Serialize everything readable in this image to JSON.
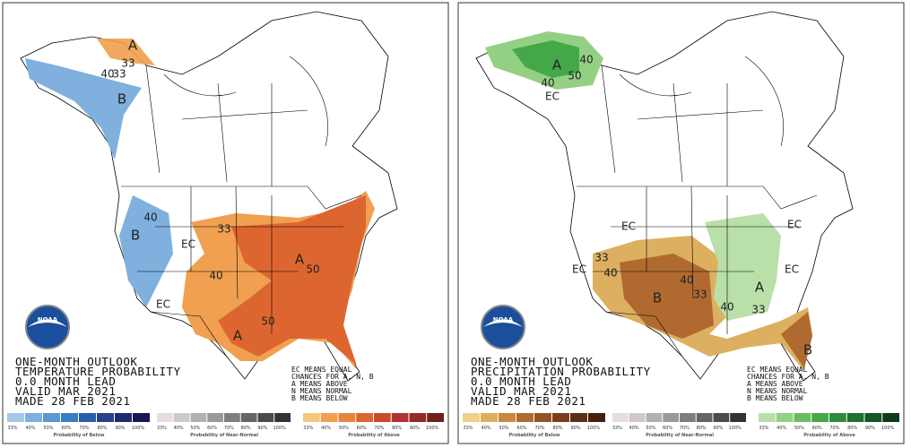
{
  "logo": "NOAA",
  "legend_ticks": [
    "33%",
    "40%",
    "50%",
    "60%",
    "70%",
    "80%",
    "90%",
    "100%"
  ],
  "panels": [
    {
      "title_lines": [
        "ONE-MONTH OUTLOOK",
        "TEMPERATURE PROBABILITY",
        "0.0 MONTH LEAD",
        "VALID MAR 2021",
        "MADE 28 FEB 2021"
      ],
      "notes": [
        "EC MEANS EQUAL",
        "CHANCES FOR A, N, B",
        "A MEANS ABOVE",
        "N MEANS NORMAL",
        "B MEANS BELOW"
      ],
      "legend": [
        {
          "caption": "Probability of Below"
        },
        {
          "caption": "Probability of Near-Normal"
        },
        {
          "caption": "Probability of Above"
        }
      ],
      "map_labels": [
        "A",
        "33",
        "40",
        "33",
        "B",
        "40",
        "B",
        "33",
        "EC",
        "40",
        "EC",
        "A",
        "50",
        "50",
        "A"
      ]
    },
    {
      "title_lines": [
        "ONE-MONTH OUTLOOK",
        "PRECIPITATION PROBABILITY",
        "0.0 MONTH LEAD",
        "VALID MAR 2021",
        "MADE 28 FEB 2021"
      ],
      "notes": [
        "EC MEANS EQUAL",
        "CHANCES FOR A, N, B",
        "A MEANS ABOVE",
        "N MEANS NORMAL",
        "B MEANS BELOW"
      ],
      "legend": [
        {
          "caption": "Probability of Below"
        },
        {
          "caption": "Probability of Near-Normal"
        },
        {
          "caption": "Probability of Above"
        }
      ],
      "map_labels": [
        "A",
        "40",
        "50",
        "40",
        "EC",
        "EC",
        "EC",
        "33",
        "40",
        "40",
        "B",
        "33",
        "EC",
        "EC",
        "A",
        "40",
        "33",
        "B"
      ]
    }
  ]
}
